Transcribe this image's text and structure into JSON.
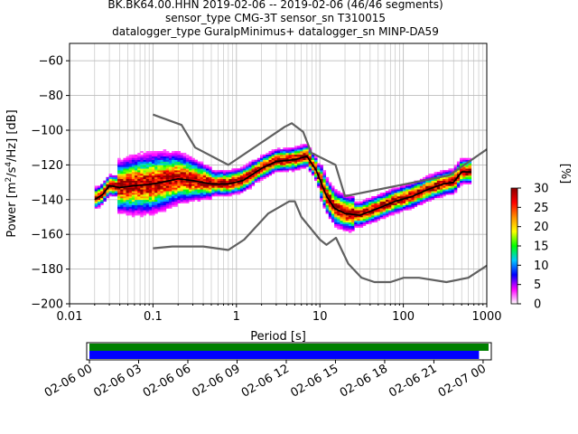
{
  "figure": {
    "title_lines": [
      "BK.BK64.00.HHN   2019-02-06 -- 2019-02-06  (46/46 segments)",
      "sensor_type CMG-3T sensor_sn T310015",
      "datalogger_type GuralpMinimus+ datalogger_sn MINP-DA59"
    ]
  },
  "colorbar": {
    "label": "[%]",
    "ticks": [
      "0",
      "5",
      "10",
      "15",
      "20",
      "25",
      "30"
    ],
    "colors": [
      "#ffffff",
      "#ff00ff",
      "#0000ff",
      "#00c8ff",
      "#00ff00",
      "#ffff00",
      "#ff8c00",
      "#ff0000",
      "#8b0000"
    ]
  },
  "chart_data": [
    {
      "type": "heatmap",
      "title": "",
      "xlabel": "Period [s]",
      "ylabel": "Power [m²/s⁴/Hz] [dB]",
      "xscale": "log",
      "xlim": [
        0.01,
        1000
      ],
      "ylim": [
        -200,
        -50
      ],
      "x_tick_labels": [
        "0.01",
        "0.1",
        "1",
        "10",
        "100",
        "1000"
      ],
      "y_tick_labels": [
        "−200",
        "−180",
        "−160",
        "−140",
        "−120",
        "−100",
        "−80",
        "−60"
      ],
      "grid": true,
      "series": [
        {
          "name": "",
          "style": "mode",
          "color": "#000000",
          "x": [
            0.02,
            0.025,
            0.03,
            0.04,
            0.06,
            0.1,
            0.2,
            0.3,
            0.5,
            0.8,
            1.2,
            2,
            3,
            5,
            7,
            9,
            12,
            15,
            20,
            30,
            50,
            80,
            130,
            200,
            300,
            400,
            500,
            650
          ],
          "y": [
            -140,
            -137,
            -132,
            -133,
            -132,
            -131,
            -128,
            -129,
            -131,
            -131,
            -129,
            -122,
            -118,
            -117,
            -115,
            -123,
            -138,
            -145,
            -148,
            -149,
            -145,
            -141,
            -138,
            -134,
            -131,
            -130,
            -124,
            -124
          ]
        },
        {
          "name": "",
          "style": "noise_model_high",
          "color": "#606060",
          "x": [
            0.1,
            0.22,
            0.32,
            0.8,
            3.8,
            4.6,
            6.3,
            7.9,
            15.4,
            20,
            354.8,
            1000
          ],
          "y": [
            -91,
            -97,
            -110,
            -120,
            -98,
            -96,
            -101,
            -113,
            -120,
            -138,
            -126,
            -111
          ]
        },
        {
          "name": "",
          "style": "noise_model_low",
          "color": "#606060",
          "x": [
            0.1,
            0.17,
            0.4,
            0.8,
            1.24,
            2.4,
            4.3,
            5,
            6,
            10,
            12,
            15.6,
            21.9,
            31.6,
            45,
            70,
            101,
            154,
            328,
            600,
            1000
          ],
          "y": [
            -168,
            -167,
            -167,
            -169,
            -163,
            -148,
            -141,
            -141,
            -150,
            -163,
            -166,
            -162,
            -177,
            -185,
            -187.5,
            -187.5,
            -185,
            -185,
            -187.5,
            -185,
            -178
          ]
        }
      ]
    },
    {
      "type": "bar",
      "title": "",
      "xlabel": "",
      "ylabel": "",
      "x_tick_labels": [
        "02-06 00",
        "02-06 03",
        "02-06 06",
        "02-06 09",
        "02-06 12",
        "02-06 15",
        "02-06 18",
        "02-06 21",
        "02-07 00"
      ],
      "xlim": [
        "2019-02-05 23:50",
        "2019-02-07 00:30"
      ],
      "series": [
        {
          "name": "",
          "color": "#008000",
          "start": "2019-02-06 00:00",
          "end": "2019-02-07 00:20"
        },
        {
          "name": "",
          "color": "#0000ff",
          "start": "2019-02-06 00:00",
          "end": "2019-02-06 23:45"
        }
      ]
    }
  ]
}
